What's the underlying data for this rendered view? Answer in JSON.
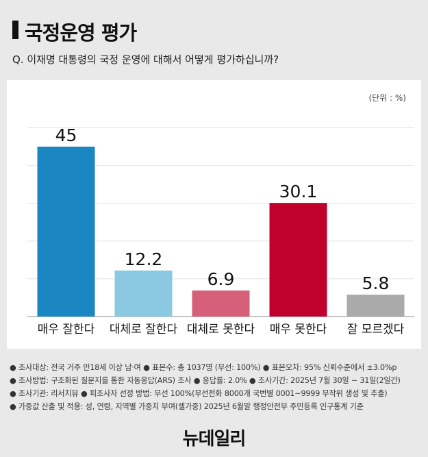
{
  "header": {
    "title": "국정운영 평가",
    "question": "Q. 이재명 대통령의 국정 운영에 대해서 어떻게 평가하십니까?"
  },
  "chart_data": {
    "type": "bar",
    "unit_label": "(단위 : %)",
    "categories": [
      "매우 잘한다",
      "대체로 잘한다",
      "대체로 못한다",
      "매우 못한다",
      "잘 모르겠다"
    ],
    "values": [
      45,
      12.2,
      6.9,
      30.1,
      5.8
    ],
    "value_labels": [
      "45",
      "12.2",
      "6.9",
      "30.1",
      "5.8"
    ],
    "colors": [
      "#1a86c2",
      "#8bc9e2",
      "#d6607a",
      "#c0002d",
      "#aaaaaa"
    ],
    "ylim": [
      0,
      55
    ],
    "grid": true
  },
  "notes": [
    "● 조사대상: 전국 거주 만18세 이상 남·여 ● 표본수: 총 1037명 (무선: 100%) ● 표본오차: 95% 신뢰수준에서 ±3.0%p",
    "● 조사방법: 구조화된 질문지를 통한 자동응답(ARS) 조사 ● 응답률: 2.0% ● 조사기간: 2025년 7월 30일 ~ 31일(2일간)",
    "● 조사기관: 리서치뷰 ● 피조사자 선정 방법: 무선 100%(무선전화 8000개 국번별 0001~9999 무작위 생성 및 추출)",
    "● 가중값 산출 및 적용: 성, 연령, 지역별 가중치 부여(셀가중) 2025년 6월말 행정안전부 주민등록 인구통계 기준"
  ],
  "footer": {
    "logo": "뉴데일리",
    "logo_mark": "·"
  }
}
